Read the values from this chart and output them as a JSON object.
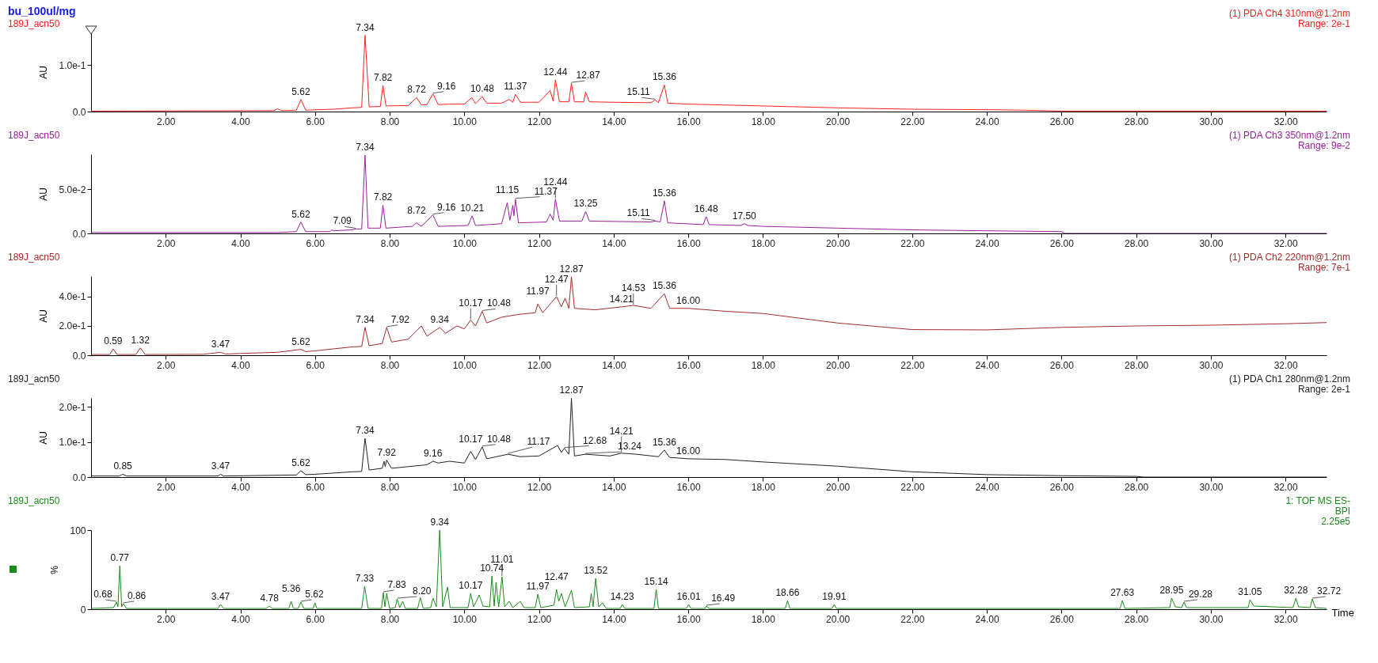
{
  "chart_data": [
    {
      "type": "line",
      "title": "bu_100ul/mg",
      "subtitle": "189J_acn50",
      "ylabel": "AU",
      "xlim": [
        0,
        33.1
      ],
      "ylim": [
        0,
        0.17
      ],
      "xticks": [
        {
          "value": 2,
          "label": "2.00"
        },
        {
          "value": 4,
          "label": "4.00"
        },
        {
          "value": 6,
          "label": "6.00"
        },
        {
          "value": 8,
          "label": "8.00"
        },
        {
          "value": 10,
          "label": "10.00"
        },
        {
          "value": 12,
          "label": "12.00"
        },
        {
          "value": 14,
          "label": "14.00"
        },
        {
          "value": 16,
          "label": "16.00"
        },
        {
          "value": 18,
          "label": "18.00"
        },
        {
          "value": 20,
          "label": "20.00"
        },
        {
          "value": 22,
          "label": "22.00"
        },
        {
          "value": 24,
          "label": "24.00"
        },
        {
          "value": 26,
          "label": "26.00"
        },
        {
          "value": 28,
          "label": "28.00"
        },
        {
          "value": 30,
          "label": "30.00"
        },
        {
          "value": 32,
          "label": "32.00"
        }
      ],
      "yticks": [
        {
          "value": 0,
          "label": "0.0"
        },
        {
          "value": 0.1,
          "label": "1.0e-1"
        }
      ],
      "series": [
        {
          "color": "#ff2020",
          "x": [
            0,
            4.9,
            5.0,
            5.1,
            5.5,
            5.62,
            5.75,
            6.5,
            7.0,
            7.25,
            7.34,
            7.45,
            7.75,
            7.82,
            7.9,
            8.5,
            8.72,
            8.85,
            9.0,
            9.16,
            9.3,
            9.6,
            10.0,
            10.2,
            10.3,
            10.48,
            10.6,
            11.0,
            11.2,
            11.3,
            11.37,
            11.5,
            12.0,
            12.3,
            12.38,
            12.44,
            12.55,
            12.8,
            12.87,
            12.95,
            13.2,
            13.25,
            13.35,
            14.0,
            15.0,
            15.11,
            15.2,
            15.36,
            15.45,
            16.0,
            17.0,
            18.0,
            20.0,
            22.0,
            24.0,
            25.0,
            26.0,
            33.1
          ],
          "values": [
            0.001,
            0.002,
            0.006,
            0.002,
            0.003,
            0.026,
            0.003,
            0.005,
            0.008,
            0.009,
            0.164,
            0.01,
            0.011,
            0.056,
            0.012,
            0.013,
            0.03,
            0.014,
            0.015,
            0.038,
            0.015,
            0.016,
            0.016,
            0.03,
            0.017,
            0.032,
            0.018,
            0.018,
            0.026,
            0.02,
            0.037,
            0.02,
            0.02,
            0.045,
            0.022,
            0.068,
            0.021,
            0.021,
            0.061,
            0.021,
            0.021,
            0.042,
            0.021,
            0.02,
            0.019,
            0.025,
            0.019,
            0.057,
            0.018,
            0.016,
            0.014,
            0.012,
            0.008,
            0.005,
            0.004,
            0.003,
            0.001,
            0.001
          ]
        }
      ],
      "annotations": [
        "(1) PDA Ch4 310nm@1.2nm",
        "Range: 2e-1",
        {
          "text": "5.62",
          "x": 5.62,
          "y": 0.026
        },
        {
          "text": "7.34",
          "x": 7.34,
          "y": 0.164
        },
        {
          "text": "7.82",
          "x": 7.82,
          "y": 0.056
        },
        {
          "text": "8.72",
          "x": 8.72,
          "y": 0.03
        },
        {
          "text": "9.16",
          "x": 9.16,
          "y": 0.038
        },
        {
          "text": "10.48",
          "x": 10.48,
          "y": 0.032
        },
        {
          "text": "11.37",
          "x": 11.37,
          "y": 0.037
        },
        {
          "text": "12.44",
          "x": 12.44,
          "y": 0.068
        },
        {
          "text": "12.87",
          "x": 12.87,
          "y": 0.061
        },
        {
          "text": "15.11",
          "x": 15.11,
          "y": 0.025
        },
        {
          "text": "15.36",
          "x": 15.36,
          "y": 0.057
        }
      ]
    },
    {
      "type": "line",
      "title": "189J_acn50",
      "ylabel": "AU",
      "xlim": [
        0,
        33.1
      ],
      "ylim": [
        0,
        0.09
      ],
      "xticks": [
        {
          "value": 2,
          "label": "2.00"
        },
        {
          "value": 4,
          "label": "4.00"
        },
        {
          "value": 6,
          "label": "6.00"
        },
        {
          "value": 8,
          "label": "8.00"
        },
        {
          "value": 10,
          "label": "10.00"
        },
        {
          "value": 12,
          "label": "12.00"
        },
        {
          "value": 14,
          "label": "14.00"
        },
        {
          "value": 16,
          "label": "16.00"
        },
        {
          "value": 18,
          "label": "18.00"
        },
        {
          "value": 20,
          "label": "20.00"
        },
        {
          "value": 22,
          "label": "22.00"
        },
        {
          "value": 24,
          "label": "24.00"
        },
        {
          "value": 26,
          "label": "26.00"
        },
        {
          "value": 28,
          "label": "28.00"
        },
        {
          "value": 30,
          "label": "30.00"
        },
        {
          "value": 32,
          "label": "32.00"
        }
      ],
      "yticks": [
        {
          "value": 0,
          "label": "0.0"
        },
        {
          "value": 0.05,
          "label": "5.0e-2"
        }
      ],
      "series": [
        {
          "color": "#9b209b",
          "x": [
            0,
            5.0,
            5.5,
            5.62,
            5.75,
            6.4,
            6.45,
            6.5,
            7.0,
            7.09,
            7.25,
            7.34,
            7.42,
            7.75,
            7.82,
            7.9,
            8.6,
            8.72,
            8.85,
            9.16,
            9.3,
            10.1,
            10.21,
            10.3,
            11.0,
            11.15,
            11.22,
            11.3,
            11.33,
            11.37,
            11.45,
            12.2,
            12.3,
            12.38,
            12.44,
            12.55,
            13.15,
            13.25,
            13.35,
            15.0,
            15.11,
            15.25,
            15.36,
            15.45,
            16.4,
            16.48,
            16.56,
            17.4,
            17.5,
            17.6,
            18.0,
            20.0,
            22.0,
            24.0,
            26.0,
            26.1,
            33.1
          ],
          "values": [
            0.001,
            0.001,
            0.002,
            0.013,
            0.002,
            0.002,
            0.004,
            0.003,
            0.004,
            0.005,
            0.005,
            0.089,
            0.006,
            0.006,
            0.032,
            0.006,
            0.008,
            0.012,
            0.008,
            0.021,
            0.008,
            0.009,
            0.02,
            0.009,
            0.011,
            0.035,
            0.015,
            0.032,
            0.02,
            0.039,
            0.012,
            0.013,
            0.022,
            0.015,
            0.039,
            0.014,
            0.014,
            0.025,
            0.014,
            0.013,
            0.014,
            0.013,
            0.037,
            0.012,
            0.01,
            0.019,
            0.01,
            0.009,
            0.011,
            0.009,
            0.008,
            0.006,
            0.004,
            0.003,
            0.002,
            0,
            0
          ]
        }
      ],
      "annotations": [
        "(1) PDA Ch3 350nm@1.2nm",
        "Range: 9e-2",
        {
          "text": "5.62",
          "x": 5.62,
          "y": 0.013
        },
        {
          "text": "7.09",
          "x": 7.09,
          "y": 0.005
        },
        {
          "text": "7.34",
          "x": 7.34,
          "y": 0.089
        },
        {
          "text": "7.82",
          "x": 7.82,
          "y": 0.032
        },
        {
          "text": "8.72",
          "x": 8.72,
          "y": 0.012
        },
        {
          "text": "9.16",
          "x": 9.16,
          "y": 0.021
        },
        {
          "text": "10.21",
          "x": 10.21,
          "y": 0.02
        },
        {
          "text": "11.15",
          "x": 11.15,
          "y": 0.035
        },
        {
          "text": "11.37",
          "x": 11.37,
          "y": 0.039
        },
        {
          "text": "12.44",
          "x": 12.44,
          "y": 0.039
        },
        {
          "text": "13.25",
          "x": 13.25,
          "y": 0.025
        },
        {
          "text": "15.11",
          "x": 15.11,
          "y": 0.014
        },
        {
          "text": "15.36",
          "x": 15.36,
          "y": 0.037
        },
        {
          "text": "16.48",
          "x": 16.48,
          "y": 0.019
        },
        {
          "text": "17.50",
          "x": 17.5,
          "y": 0.011
        }
      ]
    },
    {
      "type": "line",
      "title": "189J_acn50",
      "ylabel": "AU",
      "xlim": [
        0,
        33.1
      ],
      "ylim": [
        0,
        0.54
      ],
      "xticks": [
        {
          "value": 2,
          "label": "2.00"
        },
        {
          "value": 4,
          "label": "4.00"
        },
        {
          "value": 6,
          "label": "6.00"
        },
        {
          "value": 8,
          "label": "8.00"
        },
        {
          "value": 10,
          "label": "10.00"
        },
        {
          "value": 12,
          "label": "12.00"
        },
        {
          "value": 14,
          "label": "14.00"
        },
        {
          "value": 16,
          "label": "16.00"
        },
        {
          "value": 18,
          "label": "18.00"
        },
        {
          "value": 20,
          "label": "20.00"
        },
        {
          "value": 22,
          "label": "22.00"
        },
        {
          "value": 24,
          "label": "24.00"
        },
        {
          "value": 26,
          "label": "26.00"
        },
        {
          "value": 28,
          "label": "28.00"
        },
        {
          "value": 30,
          "label": "30.00"
        },
        {
          "value": 32,
          "label": "32.00"
        }
      ],
      "yticks": [
        {
          "value": 0,
          "label": "0.0"
        },
        {
          "value": 0.2,
          "label": "2.0e-1"
        },
        {
          "value": 0.4,
          "label": "4.0e-1"
        }
      ],
      "series": [
        {
          "color": "#a52a2a",
          "x": [
            0,
            0.5,
            0.59,
            0.7,
            1.2,
            1.32,
            1.45,
            3.0,
            3.47,
            3.6,
            4.0,
            5.0,
            5.62,
            5.75,
            6.0,
            7.0,
            7.25,
            7.34,
            7.45,
            7.8,
            7.92,
            8.05,
            8.5,
            8.85,
            9.0,
            9.34,
            9.5,
            9.8,
            10.0,
            10.17,
            10.3,
            10.48,
            10.6,
            11.0,
            11.5,
            11.9,
            11.97,
            12.1,
            12.47,
            12.6,
            12.7,
            12.8,
            12.87,
            12.95,
            13.5,
            14.21,
            14.53,
            15.0,
            15.36,
            15.5,
            16.0,
            17.0,
            18.0,
            20.0,
            22.0,
            24.0,
            26.0,
            28.0,
            30.0,
            32.0,
            33.1
          ],
          "values": [
            0.005,
            0.005,
            0.043,
            0.005,
            0.005,
            0.05,
            0.005,
            0.006,
            0.02,
            0.008,
            0.012,
            0.02,
            0.04,
            0.025,
            0.03,
            0.057,
            0.06,
            0.19,
            0.065,
            0.08,
            0.19,
            0.09,
            0.11,
            0.2,
            0.13,
            0.19,
            0.15,
            0.2,
            0.18,
            0.24,
            0.2,
            0.3,
            0.22,
            0.26,
            0.28,
            0.29,
            0.35,
            0.29,
            0.4,
            0.33,
            0.39,
            0.32,
            0.536,
            0.32,
            0.31,
            0.33,
            0.34,
            0.32,
            0.42,
            0.32,
            0.32,
            0.3,
            0.285,
            0.22,
            0.175,
            0.173,
            0.19,
            0.2,
            0.205,
            0.215,
            0.223
          ]
        }
      ],
      "annotations": [
        "(1) PDA Ch2 220nm@1.2nm",
        "Range: 7e-1",
        {
          "text": "0.59",
          "x": 0.59,
          "y": 0.043
        },
        {
          "text": "1.32",
          "x": 1.32,
          "y": 0.05
        },
        {
          "text": "3.47",
          "x": 3.47,
          "y": 0.02
        },
        {
          "text": "5.62",
          "x": 5.62,
          "y": 0.04
        },
        {
          "text": "7.34",
          "x": 7.34,
          "y": 0.19
        },
        {
          "text": "7.92",
          "x": 7.92,
          "y": 0.19
        },
        {
          "text": "9.34",
          "x": 9.34,
          "y": 0.19
        },
        {
          "text": "10.17",
          "x": 10.17,
          "y": 0.24
        },
        {
          "text": "10.48",
          "x": 10.48,
          "y": 0.3
        },
        {
          "text": "11.97",
          "x": 11.97,
          "y": 0.35
        },
        {
          "text": "12.47",
          "x": 12.47,
          "y": 0.4
        },
        {
          "text": "12.87",
          "x": 12.87,
          "y": 0.536
        },
        {
          "text": "14.21",
          "x": 14.21,
          "y": 0.33
        },
        {
          "text": "14.53",
          "x": 14.53,
          "y": 0.34
        },
        {
          "text": "15.36",
          "x": 15.36,
          "y": 0.42
        },
        {
          "text": "16.00",
          "x": 16,
          "y": 0.32
        }
      ]
    },
    {
      "type": "line",
      "title": "189J_acn50",
      "ylabel": "AU",
      "xlim": [
        0,
        33.1
      ],
      "ylim": [
        0,
        0.225
      ],
      "xticks": [
        {
          "value": 2,
          "label": "2.00"
        },
        {
          "value": 4,
          "label": "4.00"
        },
        {
          "value": 6,
          "label": "6.00"
        },
        {
          "value": 8,
          "label": "8.00"
        },
        {
          "value": 10,
          "label": "10.00"
        },
        {
          "value": 12,
          "label": "12.00"
        },
        {
          "value": 14,
          "label": "14.00"
        },
        {
          "value": 16,
          "label": "16.00"
        },
        {
          "value": 18,
          "label": "18.00"
        },
        {
          "value": 20,
          "label": "20.00"
        },
        {
          "value": 22,
          "label": "22.00"
        },
        {
          "value": 24,
          "label": "24.00"
        },
        {
          "value": 26,
          "label": "26.00"
        },
        {
          "value": 28,
          "label": "28.00"
        },
        {
          "value": 30,
          "label": "30.00"
        },
        {
          "value": 32,
          "label": "32.00"
        }
      ],
      "yticks": [
        {
          "value": 0,
          "label": "0.0"
        },
        {
          "value": 0.1,
          "label": "1.0e-1"
        },
        {
          "value": 0.2,
          "label": "2.0e-1"
        }
      ],
      "series": [
        {
          "color": "#222222",
          "x": [
            0,
            0.75,
            0.85,
            0.95,
            3.4,
            3.47,
            3.55,
            5.5,
            5.62,
            5.75,
            6.0,
            7.0,
            7.25,
            7.34,
            7.45,
            7.8,
            7.85,
            7.88,
            7.92,
            8.05,
            9.0,
            9.16,
            9.3,
            9.6,
            10.0,
            10.17,
            10.3,
            10.48,
            10.6,
            11.17,
            11.5,
            12.0,
            12.5,
            12.6,
            12.68,
            12.8,
            12.87,
            12.95,
            13.24,
            13.9,
            14.21,
            14.6,
            15.2,
            15.36,
            15.5,
            16.0,
            17.0,
            18.0,
            20.0,
            22.0,
            24.0,
            26.0,
            28.0,
            28.2,
            33.1
          ],
          "values": [
            0.003,
            0.003,
            0.008,
            0.003,
            0.003,
            0.008,
            0.003,
            0.006,
            0.018,
            0.007,
            0.008,
            0.015,
            0.016,
            0.11,
            0.02,
            0.025,
            0.045,
            0.03,
            0.048,
            0.025,
            0.035,
            0.045,
            0.04,
            0.045,
            0.04,
            0.073,
            0.05,
            0.086,
            0.052,
            0.065,
            0.058,
            0.06,
            0.09,
            0.07,
            0.082,
            0.065,
            0.224,
            0.06,
            0.065,
            0.06,
            0.068,
            0.065,
            0.058,
            0.077,
            0.056,
            0.052,
            0.05,
            0.043,
            0.031,
            0.015,
            0.007,
            0.004,
            0.002,
            0,
            0
          ]
        }
      ],
      "annotations": [
        "(1) PDA Ch1 280nm@1.2nm",
        "Range: 2e-1",
        {
          "text": "0.85",
          "x": 0.85,
          "y": 0.008
        },
        {
          "text": "3.47",
          "x": 3.47,
          "y": 0.008
        },
        {
          "text": "5.62",
          "x": 5.62,
          "y": 0.018
        },
        {
          "text": "7.34",
          "x": 7.34,
          "y": 0.11
        },
        {
          "text": "7.92",
          "x": 7.92,
          "y": 0.048
        },
        {
          "text": "9.16",
          "x": 9.16,
          "y": 0.045
        },
        {
          "text": "10.17",
          "x": 10.17,
          "y": 0.073
        },
        {
          "text": "10.48",
          "x": 10.48,
          "y": 0.086
        },
        {
          "text": "11.17",
          "x": 11.17,
          "y": 0.065
        },
        {
          "text": "12.68",
          "x": 12.68,
          "y": 0.082
        },
        {
          "text": "12.87",
          "x": 12.87,
          "y": 0.224
        },
        {
          "text": "13.24",
          "x": 13.24,
          "y": 0.065
        },
        {
          "text": "14.21",
          "x": 14.21,
          "y": 0.068
        },
        {
          "text": "15.36",
          "x": 15.36,
          "y": 0.077
        },
        {
          "text": "16.00",
          "x": 16,
          "y": 0.052
        }
      ]
    },
    {
      "type": "line",
      "title": "189J_acn50",
      "ylabel": "%",
      "xlabel": "Time",
      "xlim": [
        0,
        33.1
      ],
      "ylim": [
        0,
        100
      ],
      "xticks": [
        {
          "value": 2,
          "label": "2.00"
        },
        {
          "value": 4,
          "label": "4.00"
        },
        {
          "value": 6,
          "label": "6.00"
        },
        {
          "value": 8,
          "label": "8.00"
        },
        {
          "value": 10,
          "label": "10.00"
        },
        {
          "value": 12,
          "label": "12.00"
        },
        {
          "value": 14,
          "label": "14.00"
        },
        {
          "value": 16,
          "label": "16.00"
        },
        {
          "value": 18,
          "label": "18.00"
        },
        {
          "value": 20,
          "label": "20.00"
        },
        {
          "value": 22,
          "label": "22.00"
        },
        {
          "value": 24,
          "label": "24.00"
        },
        {
          "value": 26,
          "label": "26.00"
        },
        {
          "value": 28,
          "label": "28.00"
        },
        {
          "value": 30,
          "label": "30.00"
        },
        {
          "value": 32,
          "label": "32.00"
        }
      ],
      "yticks": [
        0,
        100
      ],
      "series": [
        {
          "color": "#1a8a1a",
          "x": [
            0,
            0.6,
            0.68,
            0.72,
            0.77,
            0.82,
            0.86,
            0.95,
            3.4,
            3.47,
            3.55,
            4.7,
            4.78,
            4.85,
            5.3,
            5.36,
            5.42,
            5.55,
            5.62,
            5.7,
            5.95,
            6.0,
            6.05,
            7.25,
            7.33,
            7.42,
            7.78,
            7.83,
            7.87,
            7.92,
            8.0,
            8.15,
            8.2,
            8.27,
            8.35,
            8.42,
            8.75,
            8.82,
            8.9,
            9.1,
            9.16,
            9.25,
            9.34,
            9.42,
            9.55,
            9.62,
            10.1,
            10.17,
            10.25,
            10.4,
            10.5,
            10.68,
            10.74,
            10.8,
            10.85,
            10.92,
            11.01,
            11.08,
            11.2,
            11.3,
            11.5,
            11.6,
            11.9,
            11.97,
            12.05,
            12.4,
            12.47,
            12.53,
            12.6,
            12.7,
            12.87,
            12.95,
            13.35,
            13.4,
            13.45,
            13.52,
            13.6,
            13.7,
            13.8,
            14.18,
            14.23,
            14.3,
            15.08,
            15.14,
            15.2,
            15.95,
            16.01,
            16.07,
            16.45,
            16.49,
            16.55,
            18.6,
            18.66,
            18.72,
            19.85,
            19.91,
            19.97,
            27.57,
            27.63,
            27.7,
            28.9,
            28.95,
            29.05,
            29.22,
            29.28,
            29.35,
            31.0,
            31.05,
            31.15,
            32.2,
            32.28,
            32.35,
            32.66,
            32.72,
            32.8,
            33.1
          ],
          "values": [
            1,
            2,
            9,
            3,
            55,
            3,
            7,
            1,
            1,
            6,
            1,
            1,
            4,
            1,
            1,
            10,
            1,
            1,
            9,
            1,
            1,
            8,
            1,
            1,
            29,
            1,
            1,
            21,
            3,
            20,
            1,
            2,
            13,
            2,
            10,
            1,
            1,
            15,
            1,
            2,
            14,
            3,
            100,
            3,
            28,
            2,
            2,
            20,
            3,
            18,
            4,
            3,
            42,
            4,
            34,
            3,
            41,
            3,
            10,
            2,
            10,
            2,
            2,
            19,
            2,
            5,
            25,
            10,
            20,
            3,
            24,
            2,
            3,
            20,
            3,
            39,
            3,
            8,
            1,
            1,
            6,
            1,
            1,
            25,
            1,
            1,
            6,
            1,
            1,
            4,
            1,
            1,
            11,
            1,
            1,
            6,
            1,
            1,
            11,
            1,
            2,
            14,
            3,
            2,
            9,
            2,
            2,
            12,
            4,
            2,
            14,
            3,
            2,
            13,
            2,
            1
          ]
        }
      ],
      "annotations": [
        "1: TOF MS ES-",
        "BPI",
        "2.25e5",
        {
          "text": "0.68",
          "x": 0.68,
          "y": 9
        },
        {
          "text": "0.77",
          "x": 0.77,
          "y": 55
        },
        {
          "text": "0.86",
          "x": 0.86,
          "y": 7
        },
        {
          "text": "3.47",
          "x": 3.47,
          "y": 6
        },
        {
          "text": "4.78",
          "x": 4.78,
          "y": 4
        },
        {
          "text": "5.36",
          "x": 5.36,
          "y": 10
        },
        {
          "text": "5.62",
          "x": 5.62,
          "y": 9
        },
        {
          "text": "7.33",
          "x": 7.33,
          "y": 29
        },
        {
          "text": "7.83",
          "x": 7.83,
          "y": 21
        },
        {
          "text": "8.20",
          "x": 8.2,
          "y": 13
        },
        {
          "text": "9.34",
          "x": 9.34,
          "y": 100
        },
        {
          "text": "10.17",
          "x": 10.17,
          "y": 20
        },
        {
          "text": "10.74",
          "x": 10.74,
          "y": 42
        },
        {
          "text": "11.01",
          "x": 11.01,
          "y": 41
        },
        {
          "text": "11.97",
          "x": 11.97,
          "y": 19
        },
        {
          "text": "12.47",
          "x": 12.47,
          "y": 25
        },
        {
          "text": "13.52",
          "x": 13.52,
          "y": 39
        },
        {
          "text": "14.23",
          "x": 14.23,
          "y": 6
        },
        {
          "text": "15.14",
          "x": 15.14,
          "y": 25
        },
        {
          "text": "16.01",
          "x": 16.01,
          "y": 6
        },
        {
          "text": "16.49",
          "x": 16.49,
          "y": 4
        },
        {
          "text": "18.66",
          "x": 18.66,
          "y": 11
        },
        {
          "text": "19.91",
          "x": 19.91,
          "y": 6
        },
        {
          "text": "27.63",
          "x": 27.63,
          "y": 11
        },
        {
          "text": "28.95",
          "x": 28.95,
          "y": 14
        },
        {
          "text": "29.28",
          "x": 29.28,
          "y": 9
        },
        {
          "text": "31.05",
          "x": 31.05,
          "y": 12
        },
        {
          "text": "32.28",
          "x": 32.28,
          "y": 14
        },
        {
          "text": "32.72",
          "x": 32.72,
          "y": 13
        }
      ]
    }
  ]
}
